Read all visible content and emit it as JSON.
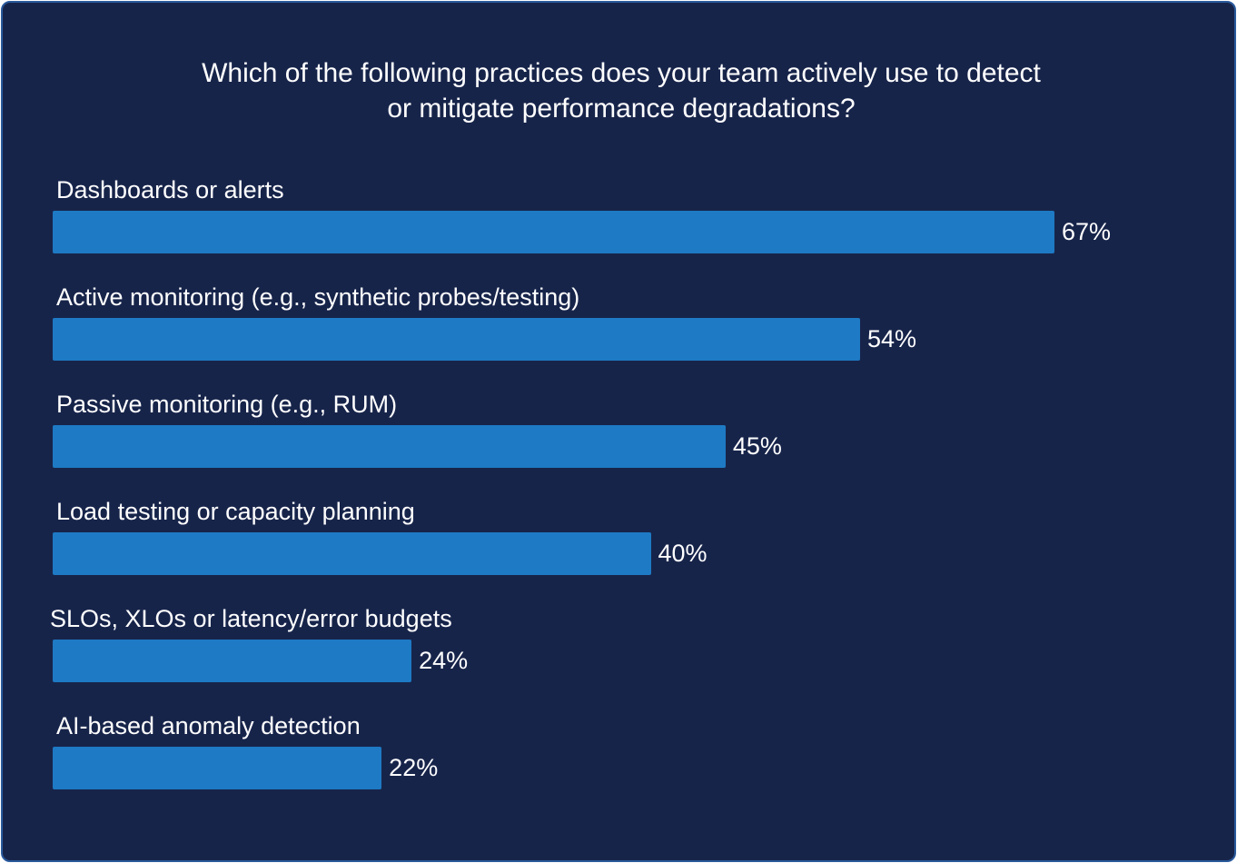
{
  "chart_data": {
    "type": "bar",
    "orientation": "horizontal",
    "title": "Which of the following practices does your team actively use to detect or mitigate performance degradations?",
    "title_lines": [
      "Which of the following practices does your team actively use to detect",
      "or mitigate performance degradations?"
    ],
    "categories": [
      "Dashboards or alerts",
      "Active monitoring (e.g., synthetic probes/testing)",
      "Passive monitoring (e.g., RUM)",
      "Load testing or capacity planning",
      "SLOs, XLOs or latency/error budgets",
      "AI-based anomaly detection"
    ],
    "values": [
      67,
      54,
      45,
      40,
      24,
      22
    ],
    "value_labels": [
      "67%",
      "54%",
      "45%",
      "40%",
      "24%",
      "22%"
    ],
    "unit": "%",
    "xlim": [
      0,
      100
    ],
    "grid": false,
    "legend": "none",
    "colors": {
      "background": "#17244a",
      "bar": "#1e7ac4",
      "text": "#ffffff",
      "border": "#2a5a9c"
    }
  }
}
